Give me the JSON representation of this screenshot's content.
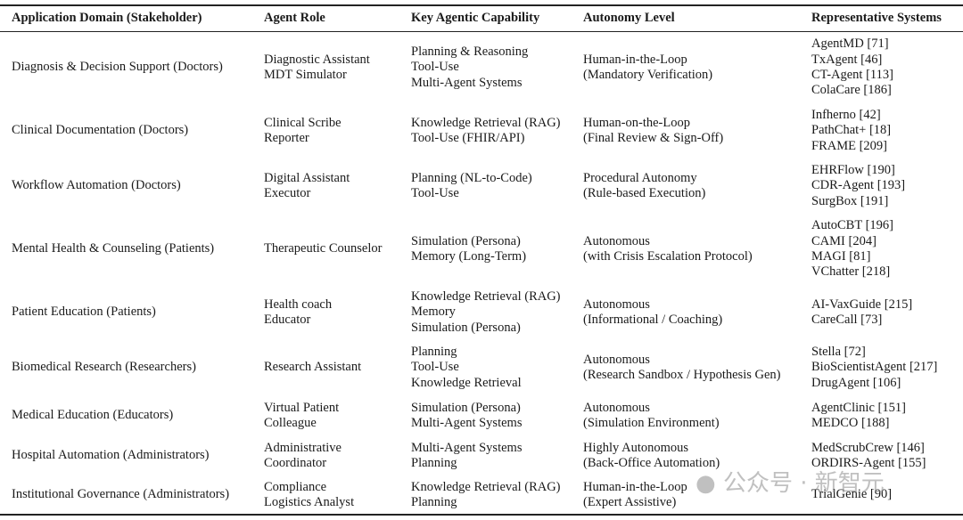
{
  "headers": [
    "Application Domain (Stakeholder)",
    "Agent Role",
    "Key Agentic Capability",
    "Autonomy Level",
    "Representative Systems"
  ],
  "rows": [
    {
      "domain": [
        "Diagnosis & Decision Support (Doctors)"
      ],
      "role": [
        "Diagnostic Assistant",
        "MDT Simulator"
      ],
      "capability": [
        "Planning & Reasoning",
        "Tool-Use",
        "Multi-Agent Systems"
      ],
      "autonomy": [
        "Human-in-the-Loop",
        "(Mandatory Verification)"
      ],
      "systems": [
        "AgentMD [71]",
        "TxAgent [46]",
        "CT-Agent [113]",
        "ColaCare [186]"
      ]
    },
    {
      "domain": [
        "Clinical Documentation (Doctors)"
      ],
      "role": [
        "Clinical Scribe",
        "Reporter"
      ],
      "capability": [
        "Knowledge Retrieval (RAG)",
        "Tool-Use (FHIR/API)"
      ],
      "autonomy": [
        "Human-on-the-Loop",
        "(Final Review & Sign-Off)"
      ],
      "systems": [
        "Infherno [42]",
        "PathChat+ [18]",
        "FRAME [209]"
      ]
    },
    {
      "domain": [
        "Workflow Automation (Doctors)"
      ],
      "role": [
        "Digital Assistant",
        "Executor"
      ],
      "capability": [
        "Planning (NL-to-Code)",
        "Tool-Use"
      ],
      "autonomy": [
        "Procedural Autonomy",
        "(Rule-based Execution)"
      ],
      "systems": [
        "EHRFlow [190]",
        "CDR-Agent [193]",
        "SurgBox [191]"
      ]
    },
    {
      "domain": [
        "Mental Health & Counseling (Patients)"
      ],
      "role": [
        "Therapeutic Counselor"
      ],
      "capability": [
        "Simulation (Persona)",
        "Memory (Long-Term)"
      ],
      "autonomy": [
        "Autonomous",
        "(with Crisis Escalation Protocol)"
      ],
      "systems": [
        "AutoCBT [196]",
        "CAMI [204]",
        "MAGI [81]",
        "VChatter [218]"
      ]
    },
    {
      "domain": [
        "Patient Education (Patients)"
      ],
      "role": [
        "Health coach",
        "Educator"
      ],
      "capability": [
        "Knowledge Retrieval (RAG)",
        "Memory",
        "Simulation (Persona)"
      ],
      "autonomy": [
        "Autonomous",
        "(Informational / Coaching)"
      ],
      "systems": [
        "AI-VaxGuide [215]",
        "CareCall [73]"
      ]
    },
    {
      "domain": [
        "Biomedical Research (Researchers)"
      ],
      "role": [
        "Research Assistant"
      ],
      "capability": [
        "Planning",
        "Tool-Use",
        "Knowledge Retrieval"
      ],
      "autonomy": [
        "Autonomous",
        "(Research Sandbox / Hypothesis Gen)"
      ],
      "systems": [
        "Stella [72]",
        "BioScientistAgent [217]",
        "DrugAgent [106]"
      ]
    },
    {
      "domain": [
        "Medical Education (Educators)"
      ],
      "role": [
        "Virtual Patient",
        "Colleague"
      ],
      "capability": [
        "Simulation (Persona)",
        "Multi-Agent Systems"
      ],
      "autonomy": [
        "Autonomous",
        "(Simulation Environment)"
      ],
      "systems": [
        "AgentClinic [151]",
        "MEDCO [188]"
      ]
    },
    {
      "domain": [
        "Hospital Automation (Administrators)"
      ],
      "role": [
        "Administrative",
        "Coordinator"
      ],
      "capability": [
        "Multi-Agent Systems",
        "Planning"
      ],
      "autonomy": [
        "Highly Autonomous",
        "(Back-Office Automation)"
      ],
      "systems": [
        "MedScrubCrew [146]",
        "ORDIRS-Agent [155]"
      ]
    },
    {
      "domain": [
        "Institutional Governance (Administrators)"
      ],
      "role": [
        "Compliance",
        "Logistics Analyst"
      ],
      "capability": [
        "Knowledge Retrieval (RAG)",
        "Planning"
      ],
      "autonomy": [
        "Human-in-the-Loop",
        "(Expert Assistive)"
      ],
      "systems": [
        "TrialGenie [90]"
      ]
    }
  ],
  "watermark": "公众号 · 新智元"
}
